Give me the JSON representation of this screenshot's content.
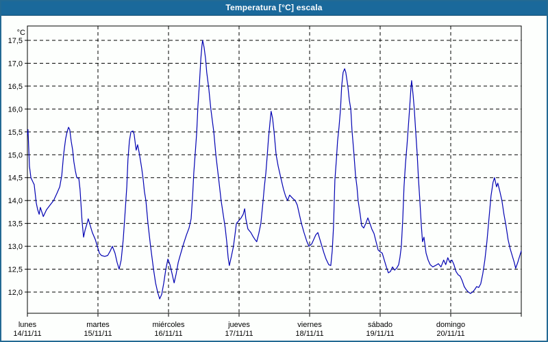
{
  "window": {
    "title": "Temperatura [°C] escala",
    "colors": {
      "title_bar": "#1a699b",
      "window_border": "#236a93",
      "background": "#fdfffd",
      "plot_border": "#000000",
      "grid": "#000000",
      "line": "#0000b2",
      "text": "#000000"
    }
  },
  "chart_data": {
    "type": "line",
    "title": "Temperatura [°C] escala",
    "ylabel": "°C",
    "grid": "dashed horizontal and vertical day boundaries",
    "legend": "none",
    "y_axis": {
      "unit": "°C",
      "lim": [
        12.0,
        17.5
      ],
      "tick_step": 0.5,
      "ticks": [
        {
          "value": 17.5,
          "label": "17,5"
        },
        {
          "value": 17.0,
          "label": "17,0"
        },
        {
          "value": 16.5,
          "label": "16,5"
        },
        {
          "value": 16.0,
          "label": "16,0"
        },
        {
          "value": 15.5,
          "label": "15,5"
        },
        {
          "value": 15.0,
          "label": "15,0"
        },
        {
          "value": 14.5,
          "label": "14,5"
        },
        {
          "value": 14.0,
          "label": "14,0"
        },
        {
          "value": 13.5,
          "label": "13,5"
        },
        {
          "value": 13.0,
          "label": "13,0"
        },
        {
          "value": 12.5,
          "label": "12,5"
        },
        {
          "value": 12.0,
          "label": "12,0"
        }
      ]
    },
    "x_axis": {
      "range_hours": [
        0,
        168
      ],
      "boundaries_hours": [
        0,
        24,
        48,
        72,
        96,
        120,
        144,
        168
      ],
      "ticks": [
        {
          "weekday": "lunes",
          "date": "14/11/11",
          "hour": 0
        },
        {
          "weekday": "martes",
          "date": "15/11/11",
          "hour": 24
        },
        {
          "weekday": "miércoles",
          "date": "16/11/11",
          "hour": 48
        },
        {
          "weekday": "jueves",
          "date": "17/11/11",
          "hour": 72
        },
        {
          "weekday": "viernes",
          "date": "18/11/11",
          "hour": 96
        },
        {
          "weekday": "sábado",
          "date": "19/11/11",
          "hour": 120
        },
        {
          "weekday": "domingo",
          "date": "20/11/11",
          "hour": 144
        }
      ]
    },
    "series": [
      {
        "name": "Temperatura",
        "color": "#0000b2",
        "points_hour_temp": [
          [
            0.0,
            15.45
          ],
          [
            0.2,
            15.55
          ],
          [
            0.7,
            14.75
          ],
          [
            1.2,
            14.5
          ],
          [
            1.9,
            14.4
          ],
          [
            2.3,
            14.35
          ],
          [
            3.0,
            13.95
          ],
          [
            3.5,
            13.8
          ],
          [
            4.0,
            13.7
          ],
          [
            4.4,
            13.85
          ],
          [
            5.4,
            13.65
          ],
          [
            6.5,
            13.8
          ],
          [
            7.7,
            13.9
          ],
          [
            8.9,
            14.0
          ],
          [
            10.0,
            14.15
          ],
          [
            11.0,
            14.3
          ],
          [
            11.7,
            14.55
          ],
          [
            12.3,
            15.0
          ],
          [
            13.0,
            15.35
          ],
          [
            13.5,
            15.5
          ],
          [
            14.0,
            15.6
          ],
          [
            14.4,
            15.55
          ],
          [
            14.9,
            15.3
          ],
          [
            15.4,
            15.1
          ],
          [
            15.8,
            14.85
          ],
          [
            16.3,
            14.65
          ],
          [
            16.8,
            14.5
          ],
          [
            17.5,
            14.48
          ],
          [
            17.9,
            14.25
          ],
          [
            18.2,
            13.95
          ],
          [
            18.6,
            13.55
          ],
          [
            19.1,
            13.2
          ],
          [
            19.6,
            13.35
          ],
          [
            20.3,
            13.5
          ],
          [
            20.7,
            13.6
          ],
          [
            21.4,
            13.45
          ],
          [
            22.1,
            13.3
          ],
          [
            23.1,
            13.15
          ],
          [
            23.8,
            13.0
          ],
          [
            24.5,
            12.85
          ],
          [
            25.2,
            12.8
          ],
          [
            26.3,
            12.78
          ],
          [
            27.3,
            12.8
          ],
          [
            28.2,
            12.9
          ],
          [
            28.9,
            13.0
          ],
          [
            29.8,
            12.85
          ],
          [
            30.5,
            12.65
          ],
          [
            31.2,
            12.5
          ],
          [
            31.9,
            12.7
          ],
          [
            32.6,
            13.15
          ],
          [
            33.3,
            13.8
          ],
          [
            33.8,
            14.3
          ],
          [
            34.2,
            14.9
          ],
          [
            34.7,
            15.3
          ],
          [
            35.2,
            15.5
          ],
          [
            35.9,
            15.52
          ],
          [
            36.3,
            15.45
          ],
          [
            36.8,
            15.2
          ],
          [
            37.0,
            15.1
          ],
          [
            37.5,
            15.22
          ],
          [
            38.0,
            15.05
          ],
          [
            38.4,
            14.9
          ],
          [
            38.9,
            14.7
          ],
          [
            39.4,
            14.45
          ],
          [
            39.8,
            14.2
          ],
          [
            40.3,
            14.0
          ],
          [
            41.0,
            13.5
          ],
          [
            41.9,
            13.0
          ],
          [
            42.9,
            12.5
          ],
          [
            43.6,
            12.2
          ],
          [
            44.3,
            12.0
          ],
          [
            45.0,
            11.85
          ],
          [
            45.7,
            11.95
          ],
          [
            46.4,
            12.2
          ],
          [
            47.1,
            12.5
          ],
          [
            47.8,
            12.72
          ],
          [
            48.5,
            12.6
          ],
          [
            49.2,
            12.4
          ],
          [
            49.9,
            12.2
          ],
          [
            50.6,
            12.4
          ],
          [
            51.3,
            12.65
          ],
          [
            52.2,
            12.85
          ],
          [
            53.1,
            13.05
          ],
          [
            54.1,
            13.25
          ],
          [
            55.0,
            13.4
          ],
          [
            55.7,
            13.6
          ],
          [
            56.2,
            14.1
          ],
          [
            56.6,
            14.6
          ],
          [
            57.1,
            15.05
          ],
          [
            57.6,
            15.5
          ],
          [
            58.0,
            16.05
          ],
          [
            58.5,
            16.55
          ],
          [
            59.0,
            17.1
          ],
          [
            59.4,
            17.4
          ],
          [
            59.6,
            17.5
          ],
          [
            60.1,
            17.35
          ],
          [
            60.6,
            17.1
          ],
          [
            61.0,
            16.8
          ],
          [
            61.7,
            16.45
          ],
          [
            62.4,
            16.0
          ],
          [
            63.4,
            15.5
          ],
          [
            64.1,
            15.0
          ],
          [
            65.0,
            14.5
          ],
          [
            65.9,
            14.0
          ],
          [
            66.6,
            13.7
          ],
          [
            67.3,
            13.4
          ],
          [
            67.8,
            13.1
          ],
          [
            68.3,
            12.75
          ],
          [
            68.7,
            12.58
          ],
          [
            69.4,
            12.78
          ],
          [
            70.1,
            13.0
          ],
          [
            70.6,
            13.25
          ],
          [
            71.1,
            13.5
          ],
          [
            71.8,
            13.55
          ],
          [
            72.7,
            13.62
          ],
          [
            73.4,
            13.7
          ],
          [
            73.9,
            13.82
          ],
          [
            74.3,
            13.6
          ],
          [
            75.0,
            13.38
          ],
          [
            76.0,
            13.3
          ],
          [
            76.7,
            13.22
          ],
          [
            77.4,
            13.15
          ],
          [
            78.0,
            13.1
          ],
          [
            78.7,
            13.28
          ],
          [
            79.4,
            13.5
          ],
          [
            80.1,
            13.95
          ],
          [
            80.6,
            14.3
          ],
          [
            81.1,
            14.6
          ],
          [
            81.6,
            15.0
          ],
          [
            82.0,
            15.35
          ],
          [
            82.5,
            15.7
          ],
          [
            82.9,
            15.95
          ],
          [
            83.4,
            15.8
          ],
          [
            83.9,
            15.5
          ],
          [
            84.6,
            15.0
          ],
          [
            85.3,
            14.75
          ],
          [
            86.2,
            14.5
          ],
          [
            87.1,
            14.25
          ],
          [
            87.8,
            14.1
          ],
          [
            88.5,
            14.0
          ],
          [
            89.2,
            14.12
          ],
          [
            90.2,
            14.05
          ],
          [
            91.1,
            14.0
          ],
          [
            91.8,
            13.9
          ],
          [
            92.5,
            13.7
          ],
          [
            93.2,
            13.5
          ],
          [
            94.1,
            13.3
          ],
          [
            95.1,
            13.1
          ],
          [
            95.8,
            13.0
          ],
          [
            96.7,
            13.05
          ],
          [
            97.4,
            13.15
          ],
          [
            98.1,
            13.25
          ],
          [
            98.8,
            13.3
          ],
          [
            99.5,
            13.15
          ],
          [
            100.2,
            13.0
          ],
          [
            100.9,
            12.85
          ],
          [
            101.6,
            12.72
          ],
          [
            102.5,
            12.6
          ],
          [
            103.2,
            12.58
          ],
          [
            103.7,
            12.9
          ],
          [
            104.1,
            13.4
          ],
          [
            104.6,
            14.45
          ],
          [
            105.1,
            14.9
          ],
          [
            105.5,
            15.3
          ],
          [
            106.0,
            15.6
          ],
          [
            106.5,
            16.0
          ],
          [
            106.9,
            16.5
          ],
          [
            107.4,
            16.8
          ],
          [
            107.9,
            16.88
          ],
          [
            108.3,
            16.8
          ],
          [
            109.0,
            16.5
          ],
          [
            109.5,
            16.2
          ],
          [
            110.0,
            16.0
          ],
          [
            110.4,
            15.55
          ],
          [
            111.1,
            15.0
          ],
          [
            111.6,
            14.55
          ],
          [
            112.1,
            14.3
          ],
          [
            112.5,
            14.0
          ],
          [
            113.2,
            13.7
          ],
          [
            113.7,
            13.45
          ],
          [
            114.4,
            13.4
          ],
          [
            115.1,
            13.5
          ],
          [
            115.8,
            13.62
          ],
          [
            116.5,
            13.5
          ],
          [
            117.2,
            13.37
          ],
          [
            117.9,
            13.28
          ],
          [
            118.6,
            13.1
          ],
          [
            119.3,
            12.92
          ],
          [
            120.0,
            12.88
          ],
          [
            120.7,
            12.85
          ],
          [
            121.4,
            12.7
          ],
          [
            122.1,
            12.55
          ],
          [
            122.8,
            12.42
          ],
          [
            123.5,
            12.45
          ],
          [
            124.2,
            12.55
          ],
          [
            124.9,
            12.48
          ],
          [
            125.6,
            12.52
          ],
          [
            126.3,
            12.6
          ],
          [
            126.7,
            12.75
          ],
          [
            127.2,
            13.0
          ],
          [
            127.7,
            13.6
          ],
          [
            128.1,
            14.3
          ],
          [
            128.6,
            14.8
          ],
          [
            129.1,
            15.2
          ],
          [
            129.5,
            15.55
          ],
          [
            130.0,
            16.0
          ],
          [
            130.5,
            16.5
          ],
          [
            130.7,
            16.62
          ],
          [
            131.2,
            16.3
          ],
          [
            131.6,
            16.0
          ],
          [
            132.1,
            15.5
          ],
          [
            132.6,
            15.0
          ],
          [
            133.0,
            14.5
          ],
          [
            133.5,
            14.0
          ],
          [
            134.0,
            13.45
          ],
          [
            134.4,
            13.1
          ],
          [
            134.9,
            13.2
          ],
          [
            135.6,
            12.85
          ],
          [
            136.3,
            12.7
          ],
          [
            137.0,
            12.6
          ],
          [
            137.9,
            12.55
          ],
          [
            138.8,
            12.58
          ],
          [
            139.8,
            12.62
          ],
          [
            140.7,
            12.55
          ],
          [
            141.6,
            12.7
          ],
          [
            142.3,
            12.6
          ],
          [
            143.0,
            12.75
          ],
          [
            143.7,
            12.65
          ],
          [
            144.4,
            12.7
          ],
          [
            145.1,
            12.6
          ],
          [
            145.8,
            12.45
          ],
          [
            146.5,
            12.38
          ],
          [
            147.2,
            12.35
          ],
          [
            147.9,
            12.25
          ],
          [
            148.6,
            12.12
          ],
          [
            149.3,
            12.05
          ],
          [
            150.0,
            12.0
          ],
          [
            150.7,
            11.97
          ],
          [
            151.4,
            12.0
          ],
          [
            152.1,
            12.05
          ],
          [
            152.8,
            12.12
          ],
          [
            153.5,
            12.1
          ],
          [
            154.2,
            12.18
          ],
          [
            154.9,
            12.4
          ],
          [
            155.6,
            12.7
          ],
          [
            156.3,
            13.1
          ],
          [
            157.0,
            13.6
          ],
          [
            157.7,
            14.1
          ],
          [
            158.4,
            14.4
          ],
          [
            158.9,
            14.5
          ],
          [
            159.6,
            14.3
          ],
          [
            160.0,
            14.38
          ],
          [
            160.7,
            14.2
          ],
          [
            161.4,
            14.0
          ],
          [
            162.1,
            13.7
          ],
          [
            162.8,
            13.45
          ],
          [
            163.5,
            13.15
          ],
          [
            164.2,
            12.95
          ],
          [
            164.9,
            12.8
          ],
          [
            165.6,
            12.65
          ],
          [
            166.1,
            12.52
          ],
          [
            166.8,
            12.65
          ],
          [
            167.5,
            12.8
          ],
          [
            168.0,
            12.9
          ]
        ]
      }
    ]
  }
}
